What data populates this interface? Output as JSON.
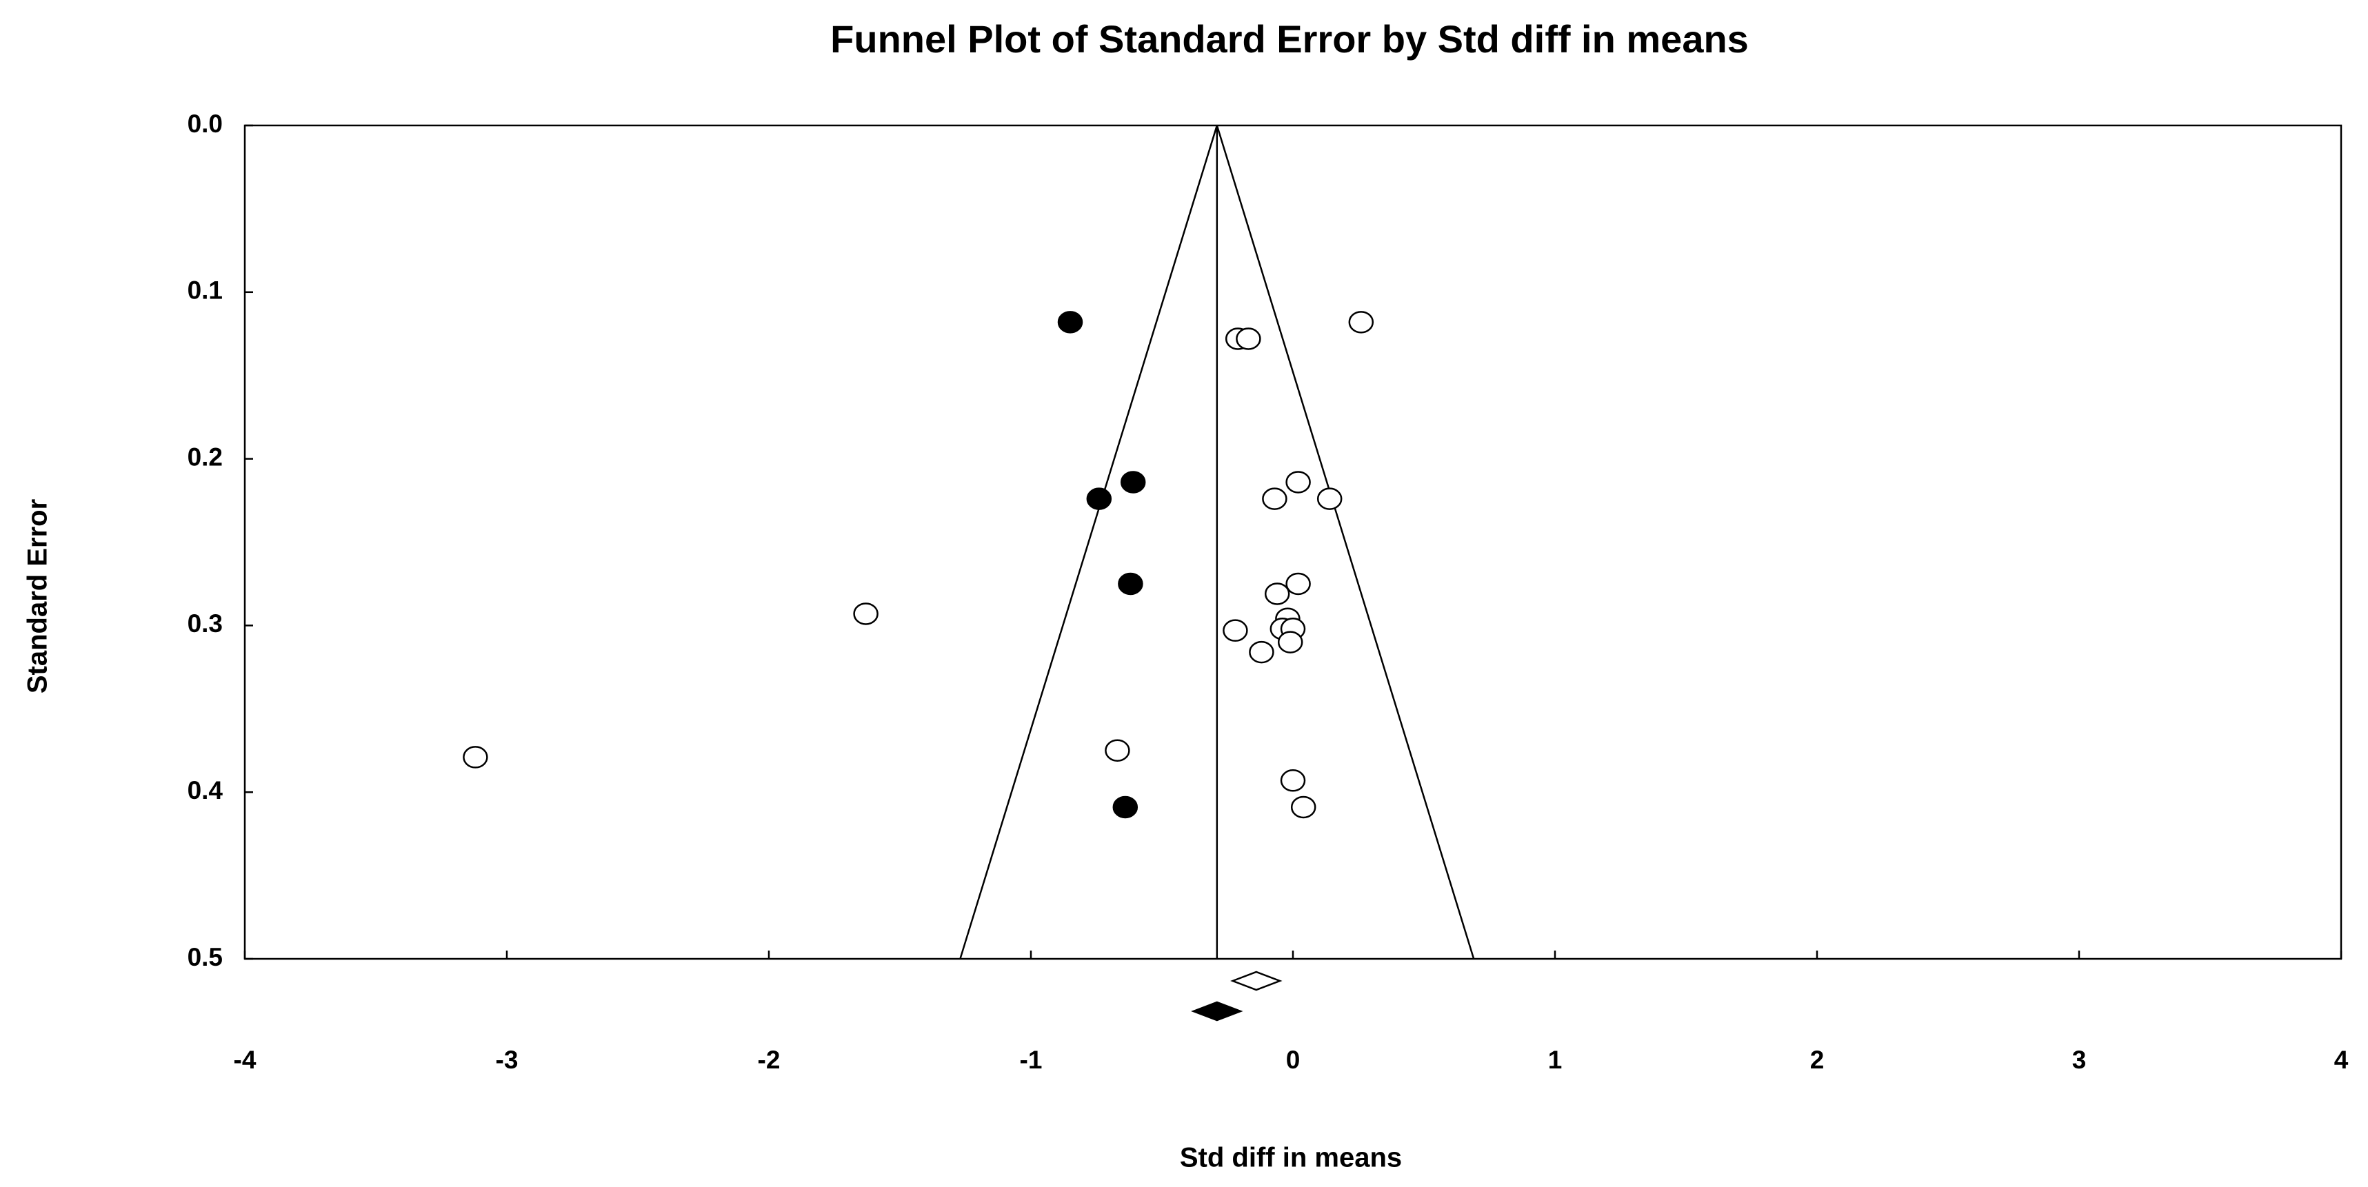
{
  "chart_data": {
    "type": "funnel",
    "title": "Funnel Plot of Standard Error by Std diff in means",
    "x_label": "Std diff in means",
    "y_label": "Standard Error",
    "xlim": [
      -4,
      4
    ],
    "xticks": [
      -4,
      -3,
      -2,
      -1,
      0,
      1,
      2,
      3,
      4
    ],
    "ylim": [
      0,
      0.5
    ],
    "y_reversed": true,
    "yticks": [
      {
        "value": 0,
        "label": "0.0"
      },
      0.1,
      0.2,
      0.3,
      0.4,
      0.5
    ],
    "funnel": {
      "center": -0.29,
      "lower": -1.27,
      "upper": 0.69
    },
    "series": [
      {
        "marker": "open",
        "color": "#000000",
        "x": [
          0.26,
          -0.21,
          -0.17,
          0.02,
          -0.07,
          0.14,
          -1.63,
          0.02,
          -0.06,
          -0.02,
          -0.04,
          0.0,
          -0.22,
          -0.01,
          -0.12,
          -3.12,
          -0.67,
          0.0,
          0.04
        ],
        "y": [
          0.118,
          0.128,
          0.128,
          0.214,
          0.224,
          0.224,
          0.293,
          0.275,
          0.281,
          0.296,
          0.302,
          0.302,
          0.303,
          0.31,
          0.316,
          0.379,
          0.375,
          0.393,
          0.409
        ]
      },
      {
        "marker": "filled",
        "color": "#000000",
        "x": [
          -0.85,
          -0.61,
          -0.74,
          -0.62,
          -0.64
        ],
        "y": [
          0.118,
          0.214,
          0.224,
          0.275,
          0.409
        ]
      }
    ],
    "summary": [
      {
        "marker": "open",
        "value": -0.14,
        "lo": -0.23,
        "hi": -0.05
      },
      {
        "marker": "filled",
        "value": -0.29,
        "lo": -0.38,
        "hi": -0.2
      }
    ]
  }
}
